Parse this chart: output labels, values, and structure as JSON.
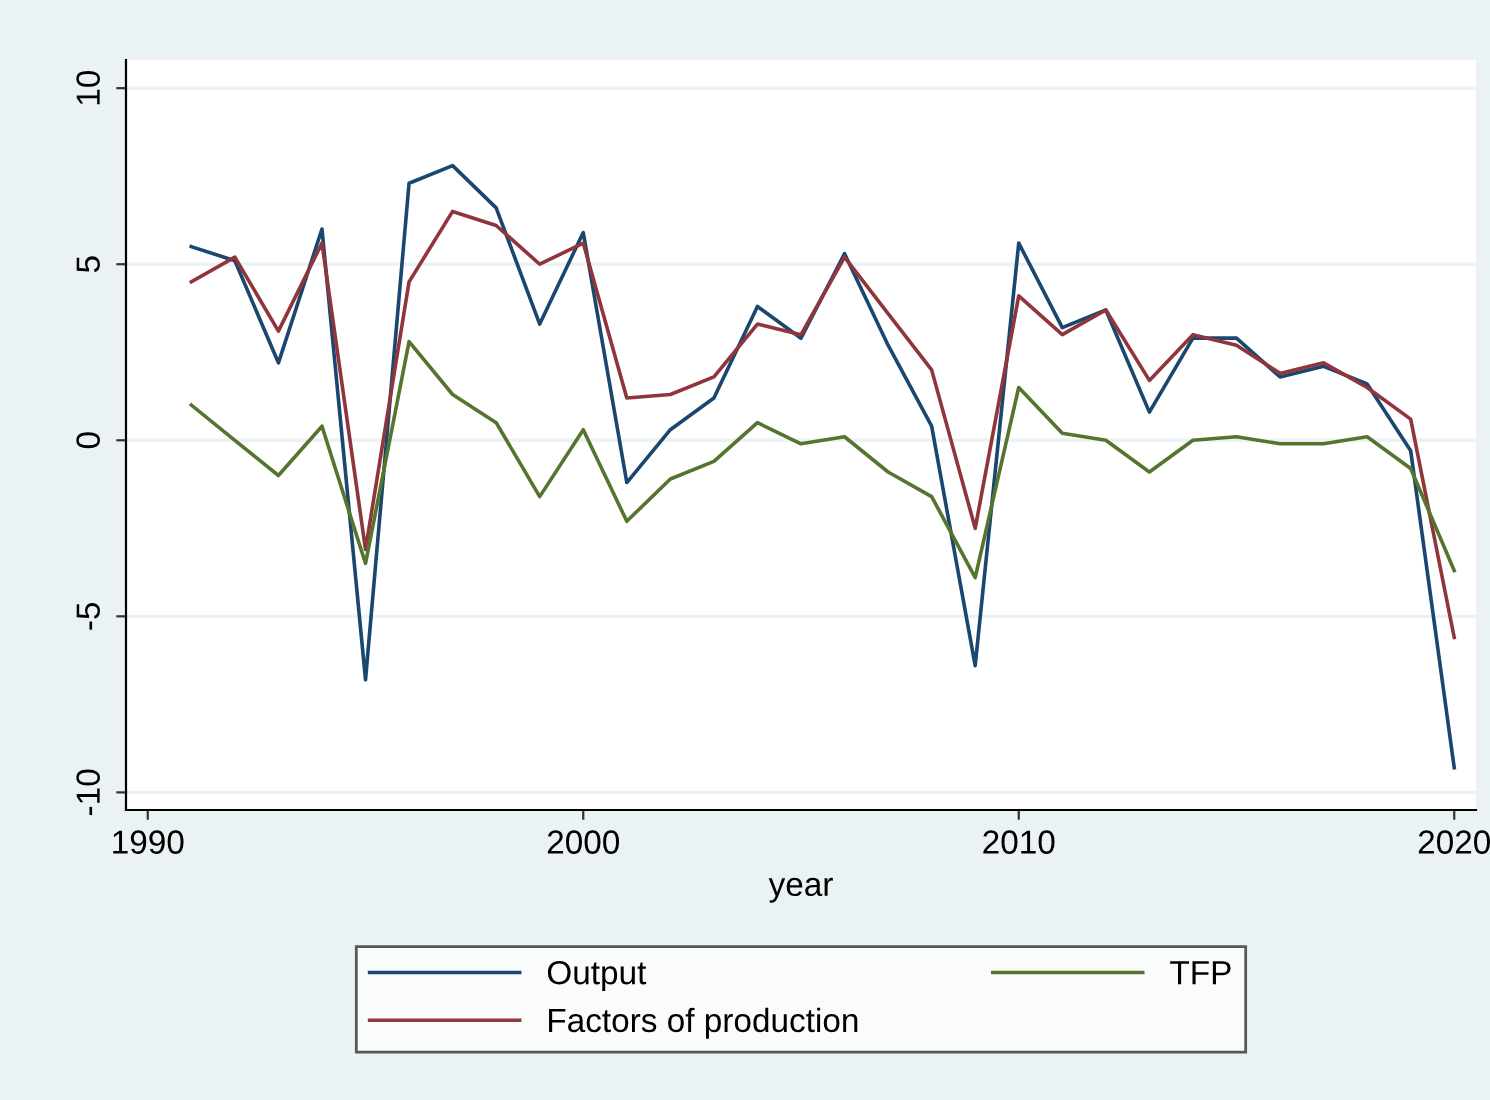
{
  "chart_data": {
    "type": "line",
    "xlabel": "year",
    "x": [
      1991,
      1992,
      1993,
      1994,
      1995,
      1996,
      1997,
      1998,
      1999,
      2000,
      2001,
      2002,
      2003,
      2004,
      2005,
      2006,
      2007,
      2008,
      2009,
      2010,
      2011,
      2012,
      2013,
      2014,
      2015,
      2016,
      2017,
      2018,
      2019,
      2020
    ],
    "series": [
      {
        "name": "Output",
        "color": "#1a476f",
        "values": [
          5.5,
          5.1,
          2.2,
          6.0,
          -6.8,
          7.3,
          7.8,
          6.6,
          3.3,
          5.9,
          -1.2,
          0.3,
          1.2,
          3.8,
          2.9,
          5.3,
          2.7,
          0.4,
          -6.4,
          5.6,
          3.2,
          3.7,
          0.8,
          2.9,
          2.9,
          1.8,
          2.1,
          1.6,
          -0.3,
          -9.3
        ]
      },
      {
        "name": "Factors of production",
        "color": "#90353b",
        "values": [
          4.5,
          5.2,
          3.1,
          5.6,
          -3.1,
          4.5,
          6.5,
          6.1,
          5.0,
          5.6,
          1.2,
          1.3,
          1.8,
          3.3,
          3.0,
          5.2,
          3.6,
          2.0,
          -2.5,
          4.1,
          3.0,
          3.7,
          1.7,
          3.0,
          2.7,
          1.9,
          2.2,
          1.5,
          0.6,
          -5.6
        ]
      },
      {
        "name": "TFP",
        "color": "#55752f",
        "values": [
          1.0,
          0.0,
          -1.0,
          0.4,
          -3.5,
          2.8,
          1.3,
          0.5,
          -1.6,
          0.3,
          -2.3,
          -1.1,
          -0.6,
          0.5,
          -0.1,
          0.1,
          -0.9,
          -1.6,
          -3.9,
          1.5,
          0.2,
          0.0,
          -0.9,
          0.0,
          0.1,
          -0.1,
          -0.1,
          0.1,
          -0.8,
          -3.7
        ]
      }
    ],
    "xlim": [
      1989.5,
      2020.5
    ],
    "xticks": [
      1990,
      2000,
      2010,
      2020
    ],
    "ylim": [
      -10.5,
      10.8
    ],
    "yticks": [
      -10,
      -5,
      0,
      5,
      10
    ],
    "grid": "y",
    "legend": "bottom",
    "marker": "none",
    "line_style": "solid"
  }
}
